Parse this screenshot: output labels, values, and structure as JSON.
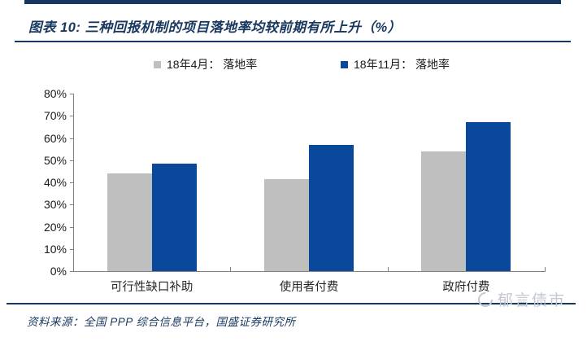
{
  "header": {
    "title": "图表 10:  三种回报机制的项目落地率均较前期有所上升（%）"
  },
  "legend": [
    {
      "label": "18年4月： 落地率",
      "color": "#BFBFBF"
    },
    {
      "label": "18年11月： 落地率",
      "color": "#09489B"
    }
  ],
  "footer": {
    "source": "资料来源：全国 PPP 综合信息平台，国盛证券研究所",
    "watermark": "郁言债市"
  },
  "colors": {
    "navy_accent": "#17375E",
    "bar_gray": "#BFBFBF",
    "bar_blue": "#09489B",
    "axis_gray": "#808080",
    "watermark_gray": "#C3C9D2"
  },
  "chart_data": {
    "type": "bar",
    "title": "三种回报机制的项目落地率均较前期有所上升（%）",
    "categories": [
      "可行性缺口补助",
      "使用者付费",
      "政府付费"
    ],
    "series": [
      {
        "name": "18年4月： 落地率",
        "color": "#BFBFBF",
        "values": [
          44,
          41.5,
          54
        ]
      },
      {
        "name": "18年11月： 落地率",
        "color": "#09489B",
        "values": [
          48.5,
          57,
          67
        ]
      }
    ],
    "xlabel": "",
    "ylabel": "",
    "ylim": [
      0,
      80
    ],
    "ytick_step": 10,
    "ytick_format": "percent",
    "grid": false,
    "legend_position": "top"
  }
}
